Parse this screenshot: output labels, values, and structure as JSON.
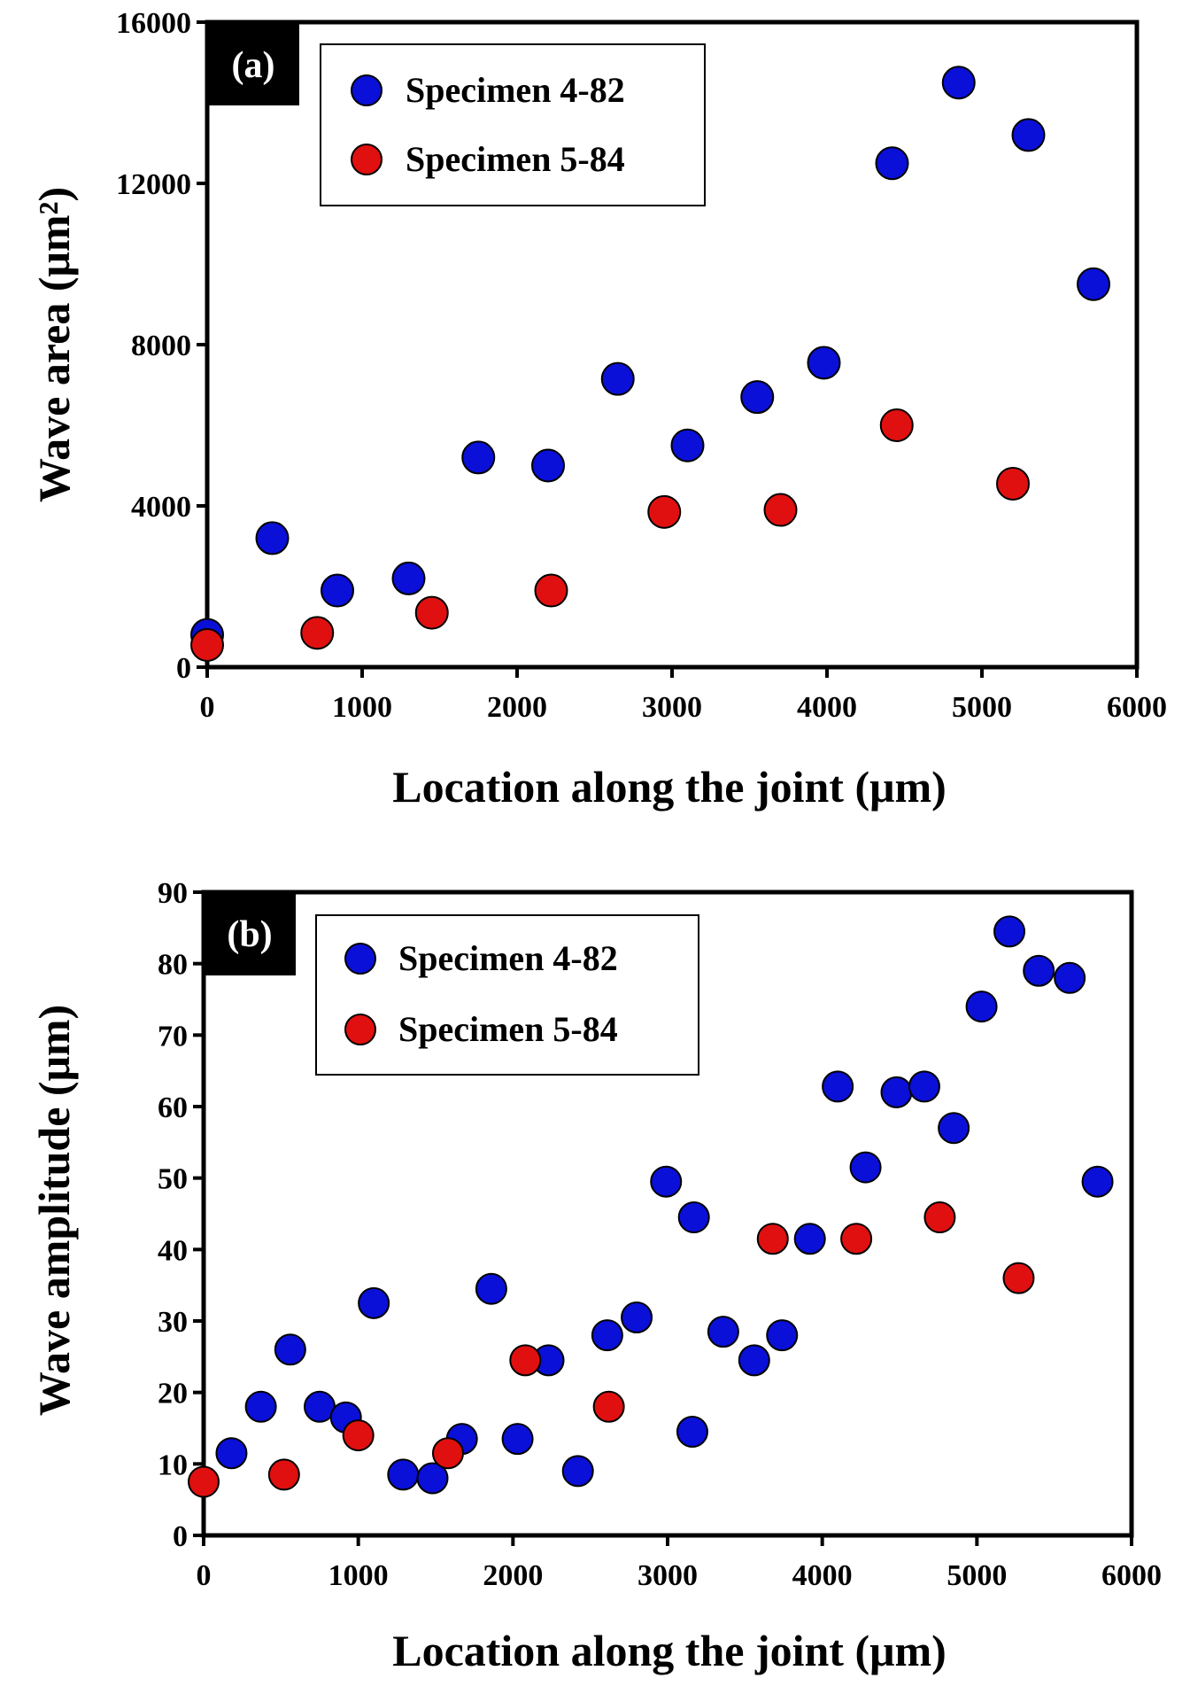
{
  "chart_data": [
    {
      "type": "scatter",
      "panel_label": "(a)",
      "xlabel": "Location along the joint (μm)",
      "ylabel": "Wave area (μm²)",
      "xlim": [
        0,
        6000
      ],
      "ylim": [
        0,
        16000
      ],
      "xticks": [
        "0",
        "1000",
        "2000",
        "3000",
        "4000",
        "5000",
        "6000"
      ],
      "yticks": [
        "0",
        "4000",
        "8000",
        "12000",
        "16000"
      ],
      "legend_position": "top-left",
      "series": [
        {
          "name": "Specimen 4-82",
          "color": "#0a10d8",
          "points": [
            [
              0,
              800
            ],
            [
              420,
              3200
            ],
            [
              840,
              1900
            ],
            [
              1300,
              2200
            ],
            [
              1750,
              5200
            ],
            [
              2200,
              5000
            ],
            [
              2650,
              7150
            ],
            [
              3100,
              5500
            ],
            [
              3550,
              6700
            ],
            [
              3980,
              7550
            ],
            [
              4420,
              12500
            ],
            [
              4850,
              14500
            ],
            [
              5300,
              13200
            ],
            [
              5720,
              9500
            ]
          ]
        },
        {
          "name": "Specimen 5-84",
          "color": "#e01010",
          "points": [
            [
              0,
              550
            ],
            [
              710,
              850
            ],
            [
              1450,
              1350
            ],
            [
              2220,
              1900
            ],
            [
              2950,
              3850
            ],
            [
              3700,
              3900
            ],
            [
              4450,
              6000
            ],
            [
              5200,
              4550
            ]
          ]
        }
      ]
    },
    {
      "type": "scatter",
      "panel_label": "(b)",
      "xlabel": "Location along the joint (μm)",
      "ylabel": "Wave amplitude (μm)",
      "xlim": [
        0,
        6000
      ],
      "ylim": [
        0,
        90
      ],
      "xticks": [
        "0",
        "1000",
        "2000",
        "3000",
        "4000",
        "5000",
        "6000"
      ],
      "yticks": [
        "0",
        "10",
        "20",
        "30",
        "40",
        "50",
        "60",
        "70",
        "80",
        "90"
      ],
      "legend_position": "top-left",
      "series": [
        {
          "name": "Specimen 4-82",
          "color": "#0a10d8",
          "points": [
            [
              180,
              11.5
            ],
            [
              370,
              18
            ],
            [
              560,
              26
            ],
            [
              750,
              18
            ],
            [
              920,
              16.5
            ],
            [
              1100,
              32.5
            ],
            [
              1290,
              8.5
            ],
            [
              1480,
              8
            ],
            [
              1670,
              13.5
            ],
            [
              1860,
              34.5
            ],
            [
              2030,
              13.5
            ],
            [
              2230,
              24.5
            ],
            [
              2420,
              9
            ],
            [
              2610,
              28
            ],
            [
              2800,
              30.5
            ],
            [
              2990,
              49.5
            ],
            [
              3160,
              14.5
            ],
            [
              3170,
              44.5
            ],
            [
              3360,
              28.5
            ],
            [
              3560,
              24.5
            ],
            [
              3740,
              28
            ],
            [
              3920,
              41.5
            ],
            [
              4100,
              62.8
            ],
            [
              4280,
              51.5
            ],
            [
              4480,
              62
            ],
            [
              4660,
              62.8
            ],
            [
              4850,
              57
            ],
            [
              5030,
              74
            ],
            [
              5210,
              84.5
            ],
            [
              5400,
              79
            ],
            [
              5600,
              78
            ],
            [
              5780,
              49.5
            ]
          ]
        },
        {
          "name": "Specimen 5-84",
          "color": "#e01010",
          "points": [
            [
              0,
              7.5
            ],
            [
              520,
              8.5
            ],
            [
              1000,
              14
            ],
            [
              1580,
              11.5
            ],
            [
              2080,
              24.5
            ],
            [
              2620,
              18
            ],
            [
              3680,
              41.5
            ],
            [
              4220,
              41.5
            ],
            [
              4760,
              44.5
            ],
            [
              5270,
              36
            ]
          ]
        }
      ]
    }
  ]
}
